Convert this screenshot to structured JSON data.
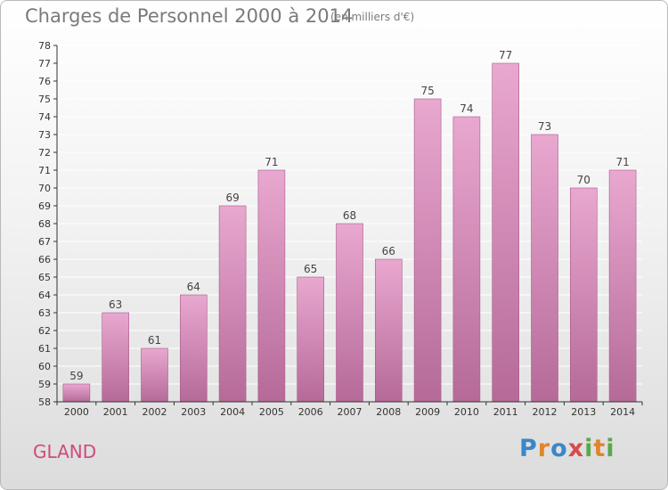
{
  "title": "Charges de Personnel 2000 à 2014",
  "subtitle": "(en milliers d'€)",
  "place": "GLAND",
  "logo": {
    "text": "Proxiti",
    "letters": [
      {
        "ch": "P",
        "color": "#3a87c8"
      },
      {
        "ch": "r",
        "color": "#e0862a"
      },
      {
        "ch": "o",
        "color": "#3a87c8"
      },
      {
        "ch": "x",
        "color": "#d64b4b"
      },
      {
        "ch": "i",
        "color": "#5aa84a"
      },
      {
        "ch": "t",
        "color": "#e0862a"
      },
      {
        "ch": "i",
        "color": "#5aa84a"
      }
    ]
  },
  "colors": {
    "bar_light": "#e9a8d0",
    "bar_dark": "#b56a98",
    "bar_edge": "#a85a8a",
    "axis": "#333333",
    "grid": "#ffffff",
    "place": "#d04a7d"
  },
  "chart_data": {
    "type": "bar",
    "categories": [
      "2000",
      "2001",
      "2002",
      "2003",
      "2004",
      "2005",
      "2006",
      "2007",
      "2008",
      "2009",
      "2010",
      "2011",
      "2012",
      "2013",
      "2014"
    ],
    "values": [
      59,
      63,
      61,
      64,
      69,
      71,
      65,
      68,
      66,
      75,
      74,
      77,
      73,
      70,
      71
    ],
    "ylim": [
      58,
      78
    ],
    "yticks": [
      58,
      59,
      60,
      61,
      62,
      63,
      64,
      65,
      66,
      67,
      68,
      69,
      70,
      71,
      72,
      73,
      74,
      75,
      76,
      77,
      78
    ],
    "grid": true,
    "xlabel": "",
    "ylabel": ""
  }
}
